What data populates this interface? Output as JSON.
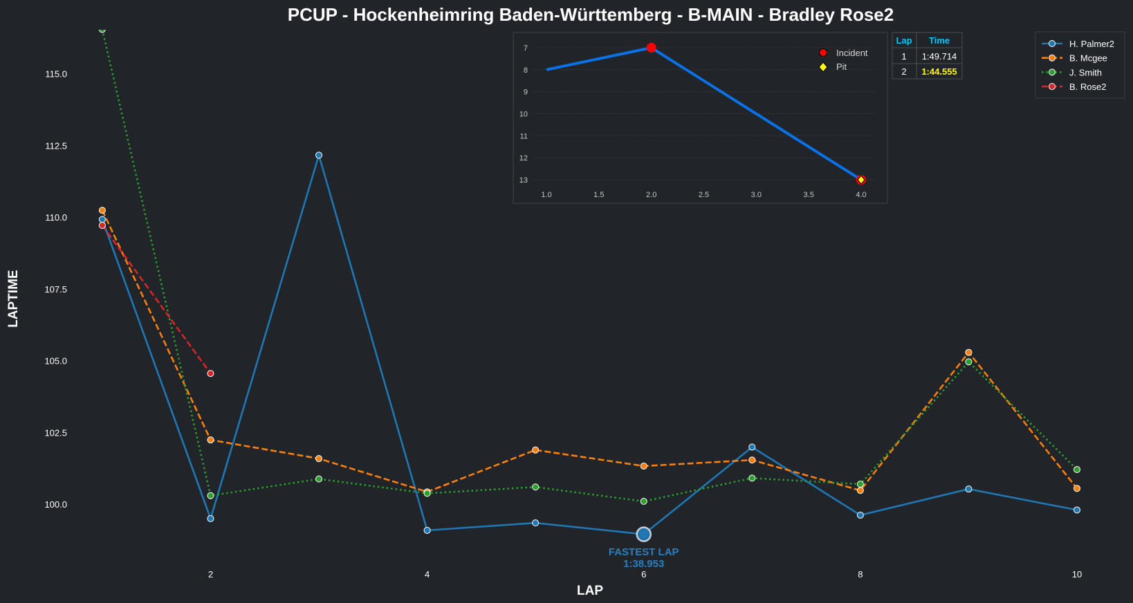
{
  "colors": {
    "background": "#212429",
    "palmer": "#1f77b4",
    "mcgee": "#ff7f0e",
    "smith": "#2ca02c",
    "rose": "#d62728",
    "inset_line": "#0a72e8",
    "header_cyan": "#00c8ff",
    "highlight_yellow": "#ffff00"
  },
  "chart_data": [
    {
      "type": "line",
      "title": "PCUP - Hockenheimring Baden-Württemberg - B-MAIN - Bradley Rose2",
      "xlabel": "LAP",
      "ylabel": "LAPTIME",
      "xlim": [
        0.79,
        10.23
      ],
      "ylim": [
        97.86,
        116.53
      ],
      "xticks": [
        2,
        4,
        6,
        8,
        10
      ],
      "yticks": [
        100.0,
        102.5,
        105.0,
        107.5,
        110.0,
        112.5,
        115.0
      ],
      "ytick_labels": [
        "100.0",
        "102.5",
        "105.0",
        "107.5",
        "110.0",
        "112.5",
        "115.0"
      ],
      "grid": false,
      "legend_position": "top-right",
      "series": [
        {
          "name": "H. Palmer2",
          "color": "#1f77b4",
          "style": "solid",
          "x": [
            1,
            2,
            3,
            4,
            5,
            6,
            7,
            8,
            9,
            10
          ],
          "values": [
            109.92,
            99.5,
            112.16,
            99.09,
            99.35,
            98.953,
            101.99,
            99.62,
            100.53,
            99.8
          ]
        },
        {
          "name": "B. Mcgee",
          "color": "#ff7f0e",
          "style": "dashed",
          "x": [
            1,
            2,
            3,
            4,
            5,
            6,
            7,
            8,
            9,
            10
          ],
          "values": [
            110.24,
            102.24,
            101.59,
            100.43,
            101.89,
            101.33,
            101.54,
            100.48,
            105.29,
            100.55
          ]
        },
        {
          "name": "J. Smith",
          "color": "#2ca02c",
          "style": "dotted",
          "x": [
            1,
            2,
            3,
            4,
            5,
            6,
            7,
            8,
            9,
            10
          ],
          "values": [
            116.54,
            100.3,
            100.88,
            100.38,
            100.6,
            100.1,
            100.91,
            100.7,
            104.96,
            101.21
          ]
        },
        {
          "name": "B. Rose2",
          "color": "#d62728",
          "style": "dashed",
          "x": [
            1,
            2
          ],
          "values": [
            109.714,
            104.555
          ]
        }
      ],
      "annotation": {
        "label": "FASTEST LAP",
        "time": "1:38.953",
        "lap": 6,
        "value": 98.953,
        "series": "H. Palmer2"
      }
    },
    {
      "type": "line",
      "title": "",
      "xlim": [
        1.0,
        4.0
      ],
      "ylim": [
        13,
        7
      ],
      "xticks": [
        1.0,
        1.5,
        2.0,
        2.5,
        3.0,
        3.5,
        4.0
      ],
      "xtick_labels": [
        "1.0",
        "1.5",
        "2.0",
        "2.5",
        "3.0",
        "3.5",
        "4.0"
      ],
      "yticks": [
        7,
        8,
        9,
        10,
        11,
        12,
        13
      ],
      "ytick_labels": [
        "7",
        "8",
        "9",
        "10",
        "11",
        "12",
        "13"
      ],
      "inverted_y": true,
      "grid": true,
      "legend_position": "top-right",
      "series": [
        {
          "name": "position",
          "x": [
            1,
            2,
            4
          ],
          "values": [
            8,
            7,
            13
          ]
        }
      ],
      "markers": [
        {
          "name": "Incident",
          "x": 2,
          "y": 7
        },
        {
          "name": "Incident",
          "x": 4,
          "y": 13
        },
        {
          "name": "Pit",
          "x": 4,
          "y": 13
        }
      ],
      "legend": [
        "Incident",
        "Pit"
      ]
    }
  ],
  "lap_table": {
    "headers": [
      "Lap",
      "Time"
    ],
    "rows": [
      [
        "1",
        "1:49.714"
      ],
      [
        "2",
        "1:44.555"
      ]
    ],
    "highlight_row": 1
  }
}
